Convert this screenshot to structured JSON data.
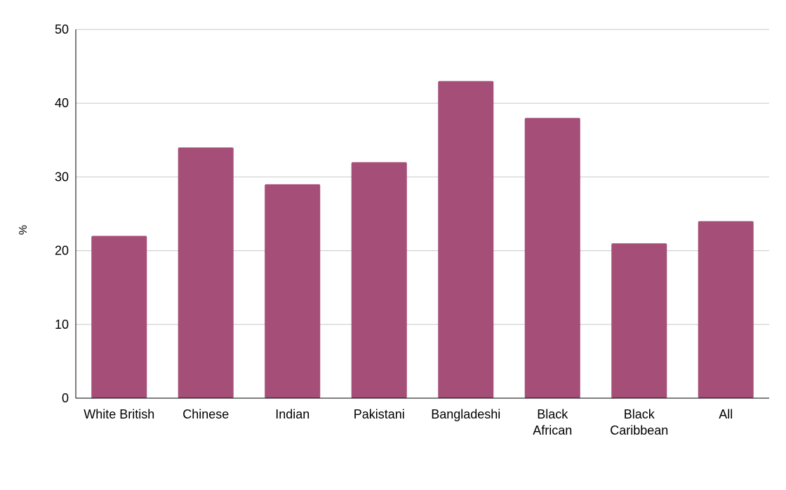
{
  "chart_data": {
    "type": "bar",
    "title": "",
    "xlabel": "",
    "ylabel": "%",
    "categories": [
      [
        "White British"
      ],
      [
        "Chinese"
      ],
      [
        "Indian"
      ],
      [
        "Pakistani"
      ],
      [
        "Bangladeshi"
      ],
      [
        "Black",
        "African"
      ],
      [
        "Black",
        "Caribbean"
      ],
      [
        "All"
      ]
    ],
    "values": [
      22,
      34,
      29,
      32,
      43,
      38,
      21,
      24
    ],
    "ylim": [
      0,
      50
    ],
    "yticks": [
      0,
      10,
      20,
      30,
      40,
      50
    ],
    "grid": true,
    "legend": "none",
    "colors": {
      "bar": "#a54e78",
      "grid": "#c8c8c8",
      "axis": "#000000"
    }
  }
}
